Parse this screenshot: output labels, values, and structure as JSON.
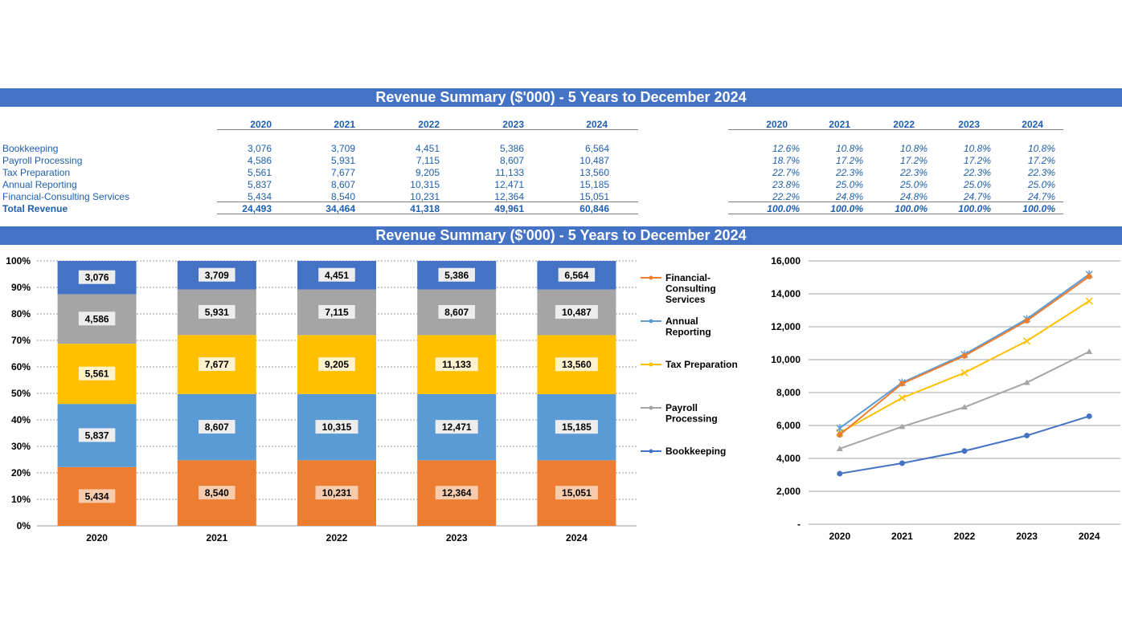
{
  "title": "Revenue Summary ($'000) - 5 Years to December 2024",
  "chart_title": "Revenue Summary ($'000) - 5 Years to December 2024",
  "years": [
    "2020",
    "2021",
    "2022",
    "2023",
    "2024"
  ],
  "rows": [
    {
      "label": "Bookkeeping",
      "values": [
        "3,076",
        "3,709",
        "4,451",
        "5,386",
        "6,564"
      ],
      "pct": [
        "12.6%",
        "10.8%",
        "10.8%",
        "10.8%",
        "10.8%"
      ]
    },
    {
      "label": "Payroll Processing",
      "values": [
        "4,586",
        "5,931",
        "7,115",
        "8,607",
        "10,487"
      ],
      "pct": [
        "18.7%",
        "17.2%",
        "17.2%",
        "17.2%",
        "17.2%"
      ]
    },
    {
      "label": "Tax Preparation",
      "values": [
        "5,561",
        "7,677",
        "9,205",
        "11,133",
        "13,560"
      ],
      "pct": [
        "22.7%",
        "22.3%",
        "22.3%",
        "22.3%",
        "22.3%"
      ]
    },
    {
      "label": "Annual Reporting",
      "values": [
        "5,837",
        "8,607",
        "10,315",
        "12,471",
        "15,185"
      ],
      "pct": [
        "23.8%",
        "25.0%",
        "25.0%",
        "25.0%",
        "25.0%"
      ]
    },
    {
      "label": "Financial-Consulting Services",
      "values": [
        "5,434",
        "8,540",
        "10,231",
        "12,364",
        "15,051"
      ],
      "pct": [
        "22.2%",
        "24.8%",
        "24.8%",
        "24.7%",
        "24.7%"
      ]
    }
  ],
  "total": {
    "label": "Total Revenue",
    "values": [
      "24,493",
      "34,464",
      "41,318",
      "49,961",
      "60,846"
    ],
    "pct": [
      "100.0%",
      "100.0%",
      "100.0%",
      "100.0%",
      "100.0%"
    ]
  },
  "chart_data": [
    {
      "type": "bar",
      "stacked": "percent",
      "categories": [
        "2020",
        "2021",
        "2022",
        "2023",
        "2024"
      ],
      "ylim": [
        0,
        100
      ],
      "yticks": [
        "0%",
        "10%",
        "20%",
        "30%",
        "40%",
        "50%",
        "60%",
        "70%",
        "80%",
        "90%",
        "100%"
      ],
      "legend": "right",
      "series": [
        {
          "name": "Financial-Consulting Services",
          "legend_lines": [
            "Financial-",
            "Consulting",
            "Services"
          ],
          "color": "#ED7D31",
          "values": [
            5434,
            8540,
            10231,
            12364,
            15051
          ],
          "labels": [
            "5,434",
            "8,540",
            "10,231",
            "12,364",
            "15,051"
          ]
        },
        {
          "name": "Annual Reporting",
          "legend_lines": [
            "Annual",
            "Reporting"
          ],
          "color": "#5B9BD5",
          "values": [
            5837,
            8607,
            10315,
            12471,
            15185
          ],
          "labels": [
            "5,837",
            "8,607",
            "10,315",
            "12,471",
            "15,185"
          ]
        },
        {
          "name": "Tax Preparation",
          "legend_lines": [
            "Tax Preparation"
          ],
          "color": "#FFC000",
          "values": [
            5561,
            7677,
            9205,
            11133,
            13560
          ],
          "labels": [
            "5,561",
            "7,677",
            "9,205",
            "11,133",
            "13,560"
          ]
        },
        {
          "name": "Payroll Processing",
          "legend_lines": [
            "Payroll",
            "Processing"
          ],
          "color": "#A5A5A5",
          "values": [
            4586,
            5931,
            7115,
            8607,
            10487
          ],
          "labels": [
            "4,586",
            "5,931",
            "7,115",
            "8,607",
            "10,487"
          ]
        },
        {
          "name": "Bookkeeping",
          "legend_lines": [
            "Bookkeeping"
          ],
          "color": "#4472C4",
          "values": [
            3076,
            3709,
            4451,
            5386,
            6564
          ],
          "labels": [
            "3,076",
            "3,709",
            "4,451",
            "5,386",
            "6,564"
          ]
        }
      ]
    },
    {
      "type": "line",
      "categories": [
        "2020",
        "2021",
        "2022",
        "2023",
        "2024"
      ],
      "ylim": [
        0,
        16000
      ],
      "yticks": [
        "-",
        "2,000",
        "4,000",
        "6,000",
        "8,000",
        "10,000",
        "12,000",
        "14,000",
        "16,000"
      ],
      "grid": true,
      "series": [
        {
          "name": "Bookkeeping",
          "color": "#4472C4",
          "marker": "circle",
          "values": [
            3076,
            3709,
            4451,
            5386,
            6564
          ]
        },
        {
          "name": "Payroll Processing",
          "color": "#A5A5A5",
          "marker": "triangle",
          "values": [
            4586,
            5931,
            7115,
            8607,
            10487
          ]
        },
        {
          "name": "Tax Preparation",
          "color": "#FFC000",
          "marker": "x",
          "values": [
            5561,
            7677,
            9205,
            11133,
            13560
          ]
        },
        {
          "name": "Annual Reporting",
          "color": "#5B9BD5",
          "marker": "star",
          "values": [
            5837,
            8607,
            10315,
            12471,
            15185
          ]
        },
        {
          "name": "Financial-Consulting Services",
          "color": "#ED7D31",
          "marker": "circle",
          "values": [
            5434,
            8540,
            10231,
            12364,
            15051
          ]
        }
      ]
    }
  ]
}
